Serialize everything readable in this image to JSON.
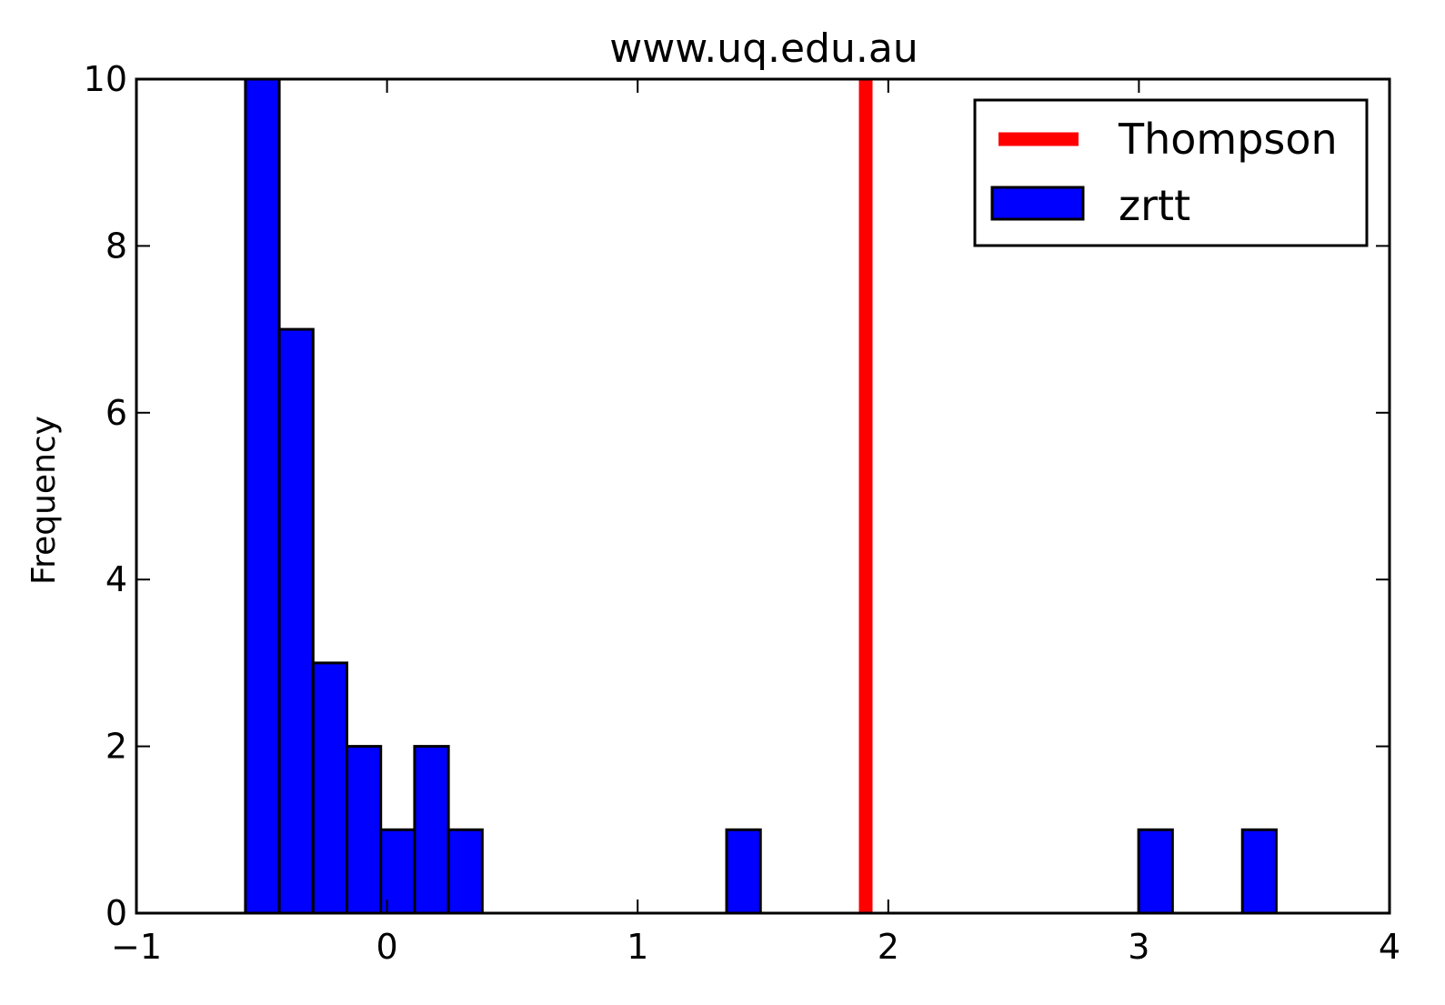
{
  "chart_data": {
    "type": "bar",
    "title": "www.uq.edu.au",
    "xlabel": "",
    "ylabel": "Frequency",
    "xlim": [
      -1,
      4
    ],
    "ylim": [
      0,
      10
    ],
    "xticks": [
      -1,
      0,
      1,
      2,
      3,
      4
    ],
    "xtick_labels": [
      "−1",
      "0",
      "1",
      "2",
      "3",
      "4"
    ],
    "yticks": [
      0,
      2,
      4,
      6,
      8,
      10
    ],
    "ytick_labels": [
      "0",
      "2",
      "4",
      "6",
      "8",
      "10"
    ],
    "grid": false,
    "legend_position": "top-right",
    "series": [
      {
        "name": "zrtt",
        "kind": "histogram",
        "color": "#0000ff",
        "bins": [
          {
            "x0": -0.565,
            "x1": -0.43,
            "count": 10
          },
          {
            "x0": -0.43,
            "x1": -0.295,
            "count": 7
          },
          {
            "x0": -0.295,
            "x1": -0.16,
            "count": 3
          },
          {
            "x0": -0.16,
            "x1": -0.025,
            "count": 2
          },
          {
            "x0": -0.025,
            "x1": 0.11,
            "count": 1
          },
          {
            "x0": 0.11,
            "x1": 0.245,
            "count": 2
          },
          {
            "x0": 0.245,
            "x1": 0.38,
            "count": 1
          },
          {
            "x0": 1.355,
            "x1": 1.49,
            "count": 1
          },
          {
            "x0": 2.999,
            "x1": 3.134,
            "count": 1
          },
          {
            "x0": 3.413,
            "x1": 3.548,
            "count": 1
          }
        ]
      },
      {
        "name": "Thompson",
        "kind": "vline",
        "color": "#ff0000",
        "x": 1.91
      }
    ]
  }
}
